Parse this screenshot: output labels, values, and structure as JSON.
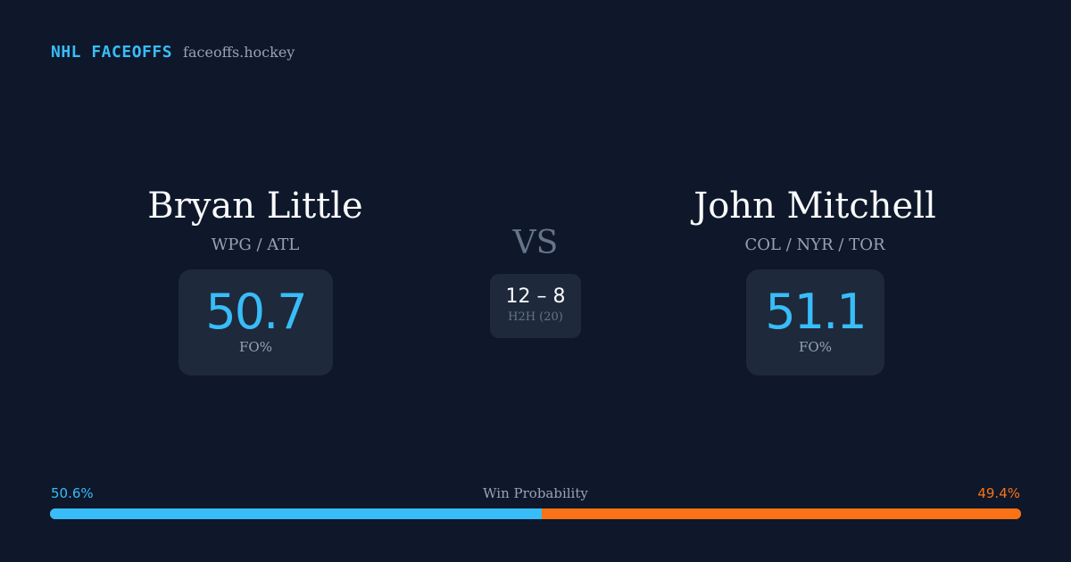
{
  "brand": {
    "name": "NHL FACEOFFS",
    "domain": "faceoffs.hockey"
  },
  "player_left": {
    "name": "Bryan Little",
    "teams": "WPG / ATL",
    "stat_value": "50.7",
    "stat_label": "FO%"
  },
  "player_right": {
    "name": "John Mitchell",
    "teams": "COL / NYR / TOR",
    "stat_value": "51.1",
    "stat_label": "FO%"
  },
  "vs_label": "VS",
  "h2h": {
    "score": "12 – 8",
    "label": "H2H (20)"
  },
  "win_probability": {
    "title": "Win Probability",
    "left_label": "50.6%",
    "right_label": "49.4%",
    "left_fraction": 0.506,
    "right_fraction": 0.494
  },
  "colors": {
    "background": "#0f172a",
    "card": "#1e293b",
    "accent_left": "#38bdf8",
    "accent_right": "#f97316"
  }
}
